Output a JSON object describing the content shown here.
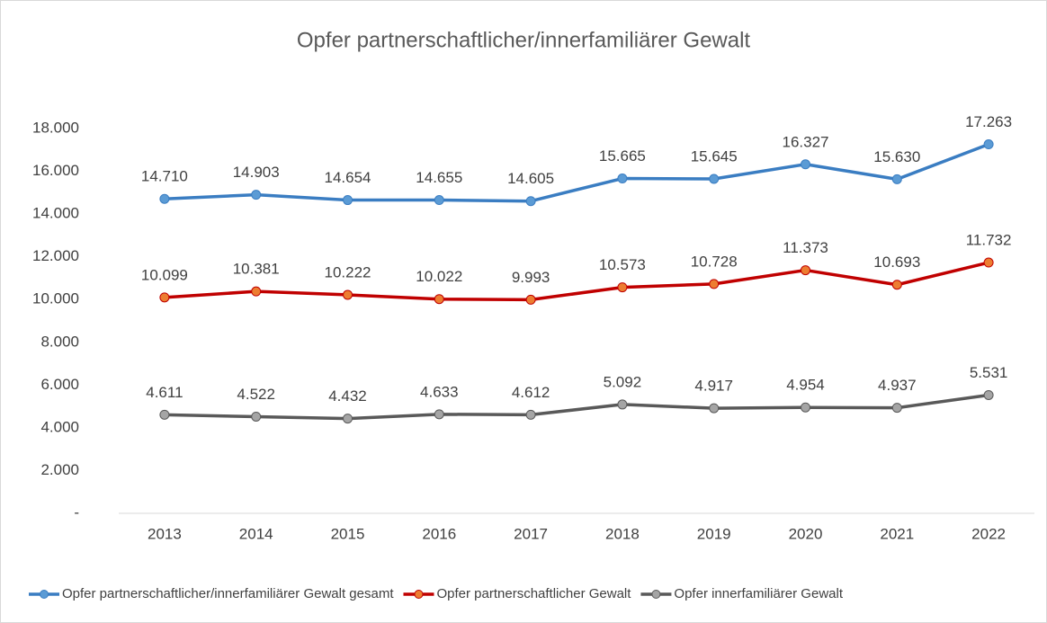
{
  "chart_data": {
    "type": "line",
    "title": "Opfer partnerschaftlicher/innerfamiliärer  Gewalt",
    "categories": [
      "2013",
      "2014",
      "2015",
      "2016",
      "2017",
      "2018",
      "2019",
      "2020",
      "2021",
      "2022"
    ],
    "series": [
      {
        "name": "Opfer partnerschaftlicher/innerfamiliärer Gewalt gesamt",
        "color": "#3a7dc2",
        "marker_color": "#5b9bd5",
        "values": [
          14710,
          14903,
          14654,
          14655,
          14605,
          15665,
          15645,
          16327,
          15630,
          17263
        ],
        "value_labels": [
          "14.710",
          "14.903",
          "14.654",
          "14.655",
          "14.605",
          "15.665",
          "15.645",
          "16.327",
          "15.630",
          "17.263"
        ]
      },
      {
        "name": "Opfer partnerschaftlicher Gewalt",
        "color": "#c00000",
        "marker_color": "#ed7d31",
        "values": [
          10099,
          10381,
          10222,
          10022,
          9993,
          10573,
          10728,
          11373,
          10693,
          11732
        ],
        "value_labels": [
          "10.099",
          "10.381",
          "10.222",
          "10.022",
          "9.993",
          "10.573",
          "10.728",
          "11.373",
          "10.693",
          "11.732"
        ]
      },
      {
        "name": "Opfer innerfamiliärer Gewalt",
        "color": "#595959",
        "marker_color": "#a5a5a5",
        "values": [
          4611,
          4522,
          4432,
          4633,
          4612,
          5092,
          4917,
          4954,
          4937,
          5531
        ],
        "value_labels": [
          "4.611",
          "4.522",
          "4.432",
          "4.633",
          "4.612",
          "5.092",
          "4.917",
          "4.954",
          "4.937",
          "5.531"
        ]
      }
    ],
    "ylim": [
      0,
      18000
    ],
    "yticks": [
      {
        "value": 0,
        "label": "-"
      },
      {
        "value": 2000,
        "label": "2.000"
      },
      {
        "value": 4000,
        "label": "4.000"
      },
      {
        "value": 6000,
        "label": "6.000"
      },
      {
        "value": 8000,
        "label": "8.000"
      },
      {
        "value": 10000,
        "label": "10.000"
      },
      {
        "value": 12000,
        "label": "12.000"
      },
      {
        "value": 14000,
        "label": "14.000"
      },
      {
        "value": 16000,
        "label": "16.000"
      },
      {
        "value": 18000,
        "label": "18.000"
      }
    ],
    "grid": false,
    "legend": "bottom"
  }
}
